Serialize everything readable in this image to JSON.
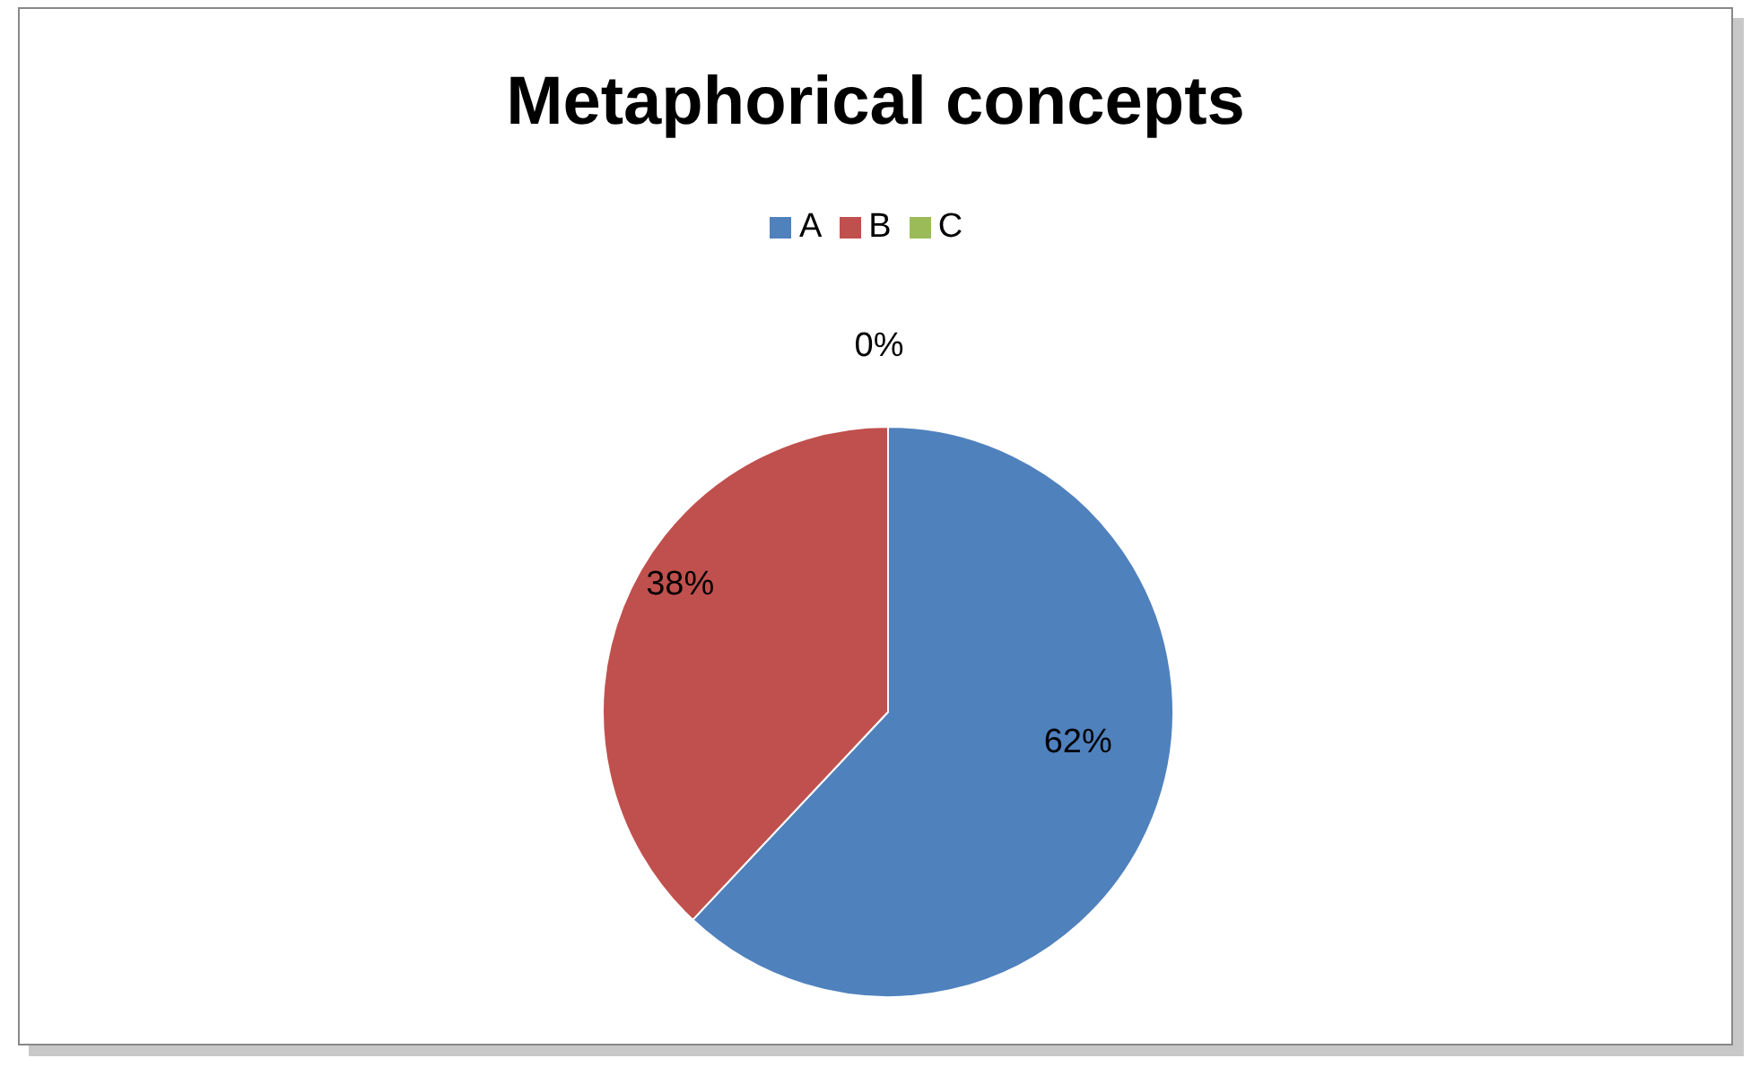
{
  "chart_data": {
    "type": "pie",
    "title": "Metaphorical concepts",
    "categories": [
      "A",
      "B",
      "C"
    ],
    "values": [
      62,
      38,
      0
    ],
    "colors": [
      "#4f81bd",
      "#c0504d",
      "#9bbb59"
    ],
    "value_labels": [
      "62%",
      "38%",
      "0%"
    ],
    "legend": "top"
  }
}
